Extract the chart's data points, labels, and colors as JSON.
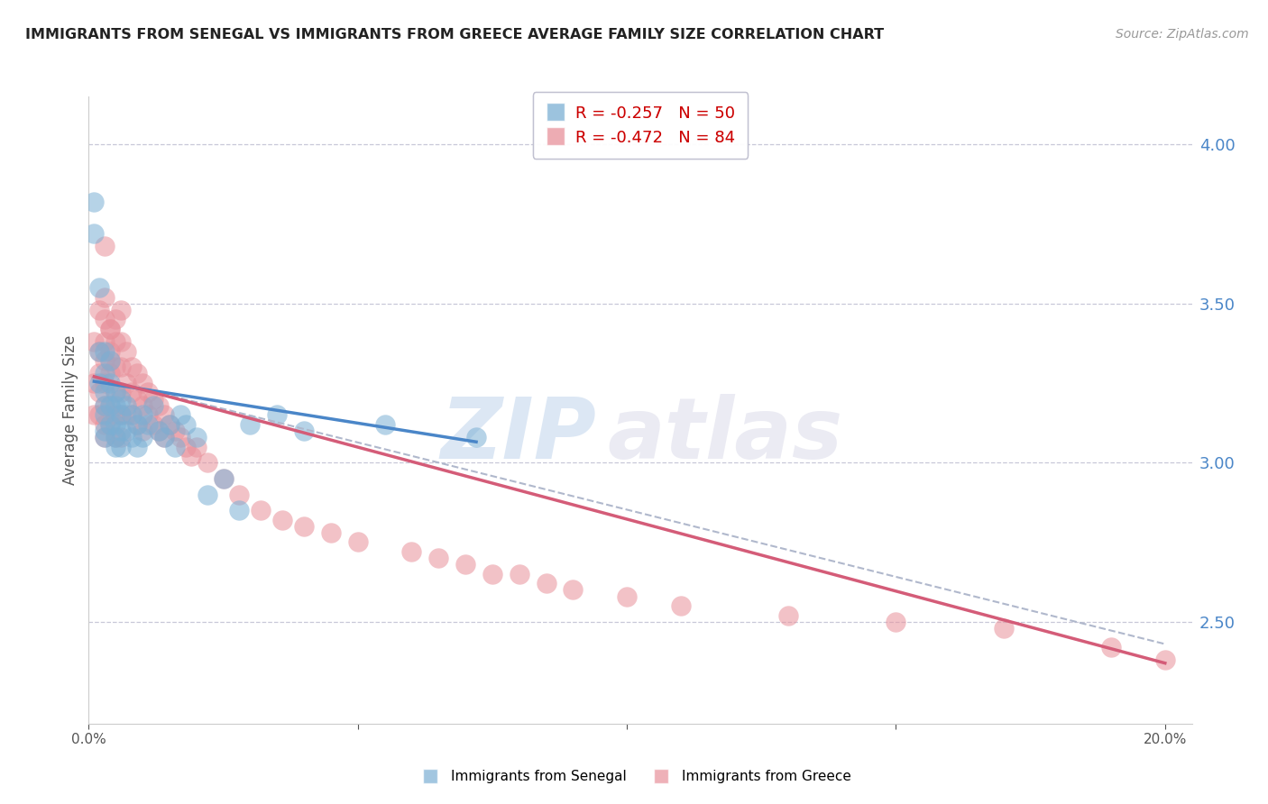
{
  "title": "IMMIGRANTS FROM SENEGAL VS IMMIGRANTS FROM GREECE AVERAGE FAMILY SIZE CORRELATION CHART",
  "source": "Source: ZipAtlas.com",
  "ylabel": "Average Family Size",
  "right_yticks": [
    2.5,
    3.0,
    3.5,
    4.0
  ],
  "xmin": 0.0,
  "xmax": 0.205,
  "ymin": 2.18,
  "ymax": 4.15,
  "senegal_R": -0.257,
  "senegal_N": 50,
  "greece_R": -0.472,
  "greece_N": 84,
  "senegal_color": "#7bafd4",
  "greece_color": "#e8909a",
  "senegal_line_color": "#4a86c8",
  "greece_line_color": "#d45c78",
  "dashed_line_color": "#b0b8cc",
  "title_color": "#222222",
  "source_color": "#999999",
  "right_axis_color": "#4a86c8",
  "grid_color": "#c8c8d8",
  "background_color": "#ffffff",
  "senegal_line_x0": 0.001,
  "senegal_line_x1": 0.072,
  "senegal_line_y0": 3.255,
  "senegal_line_y1": 3.065,
  "greece_line_x0": 0.001,
  "greece_line_x1": 0.2,
  "greece_line_y0": 3.27,
  "greece_line_y1": 2.37,
  "dash_line_x0": 0.001,
  "dash_line_x1": 0.2,
  "dash_line_y0": 3.27,
  "dash_line_y1": 2.43,
  "senegal_x": [
    0.001,
    0.001,
    0.002,
    0.002,
    0.002,
    0.003,
    0.003,
    0.003,
    0.003,
    0.003,
    0.003,
    0.003,
    0.004,
    0.004,
    0.004,
    0.004,
    0.005,
    0.005,
    0.005,
    0.005,
    0.005,
    0.006,
    0.006,
    0.006,
    0.006,
    0.007,
    0.007,
    0.008,
    0.008,
    0.009,
    0.009,
    0.01,
    0.01,
    0.011,
    0.012,
    0.013,
    0.014,
    0.015,
    0.016,
    0.017,
    0.018,
    0.02,
    0.022,
    0.025,
    0.028,
    0.03,
    0.035,
    0.04,
    0.055,
    0.072
  ],
  "senegal_y": [
    3.82,
    3.72,
    3.55,
    3.35,
    3.25,
    3.35,
    3.28,
    3.22,
    3.18,
    3.15,
    3.1,
    3.08,
    3.32,
    3.25,
    3.18,
    3.12,
    3.22,
    3.18,
    3.12,
    3.08,
    3.05,
    3.2,
    3.15,
    3.1,
    3.05,
    3.18,
    3.1,
    3.15,
    3.08,
    3.12,
    3.05,
    3.15,
    3.08,
    3.12,
    3.18,
    3.1,
    3.08,
    3.12,
    3.05,
    3.15,
    3.12,
    3.08,
    2.9,
    2.95,
    2.85,
    3.12,
    3.15,
    3.1,
    3.12,
    3.08
  ],
  "greece_x": [
    0.001,
    0.001,
    0.001,
    0.002,
    0.002,
    0.002,
    0.002,
    0.002,
    0.003,
    0.003,
    0.003,
    0.003,
    0.003,
    0.003,
    0.003,
    0.004,
    0.004,
    0.004,
    0.004,
    0.004,
    0.005,
    0.005,
    0.005,
    0.005,
    0.005,
    0.006,
    0.006,
    0.006,
    0.006,
    0.006,
    0.007,
    0.007,
    0.007,
    0.008,
    0.008,
    0.008,
    0.009,
    0.009,
    0.009,
    0.01,
    0.01,
    0.01,
    0.011,
    0.011,
    0.012,
    0.012,
    0.013,
    0.013,
    0.014,
    0.014,
    0.015,
    0.016,
    0.017,
    0.018,
    0.019,
    0.02,
    0.022,
    0.025,
    0.028,
    0.032,
    0.036,
    0.04,
    0.045,
    0.05,
    0.06,
    0.065,
    0.07,
    0.075,
    0.08,
    0.085,
    0.09,
    0.1,
    0.11,
    0.13,
    0.15,
    0.17,
    0.19,
    0.2,
    0.003,
    0.003,
    0.004,
    0.004,
    0.005,
    0.006
  ],
  "greece_y": [
    3.38,
    3.25,
    3.15,
    3.48,
    3.35,
    3.28,
    3.22,
    3.15,
    3.45,
    3.38,
    3.32,
    3.25,
    3.18,
    3.12,
    3.08,
    3.42,
    3.35,
    3.28,
    3.18,
    3.12,
    3.38,
    3.3,
    3.22,
    3.15,
    3.08,
    3.38,
    3.3,
    3.22,
    3.15,
    3.08,
    3.35,
    3.25,
    3.15,
    3.3,
    3.22,
    3.15,
    3.28,
    3.2,
    3.12,
    3.25,
    3.18,
    3.1,
    3.22,
    3.15,
    3.2,
    3.12,
    3.18,
    3.1,
    3.15,
    3.08,
    3.12,
    3.1,
    3.08,
    3.05,
    3.02,
    3.05,
    3.0,
    2.95,
    2.9,
    2.85,
    2.82,
    2.8,
    2.78,
    2.75,
    2.72,
    2.7,
    2.68,
    2.65,
    2.65,
    2.62,
    2.6,
    2.58,
    2.55,
    2.52,
    2.5,
    2.48,
    2.42,
    2.38,
    3.68,
    3.52,
    3.42,
    3.32,
    3.45,
    3.48
  ]
}
